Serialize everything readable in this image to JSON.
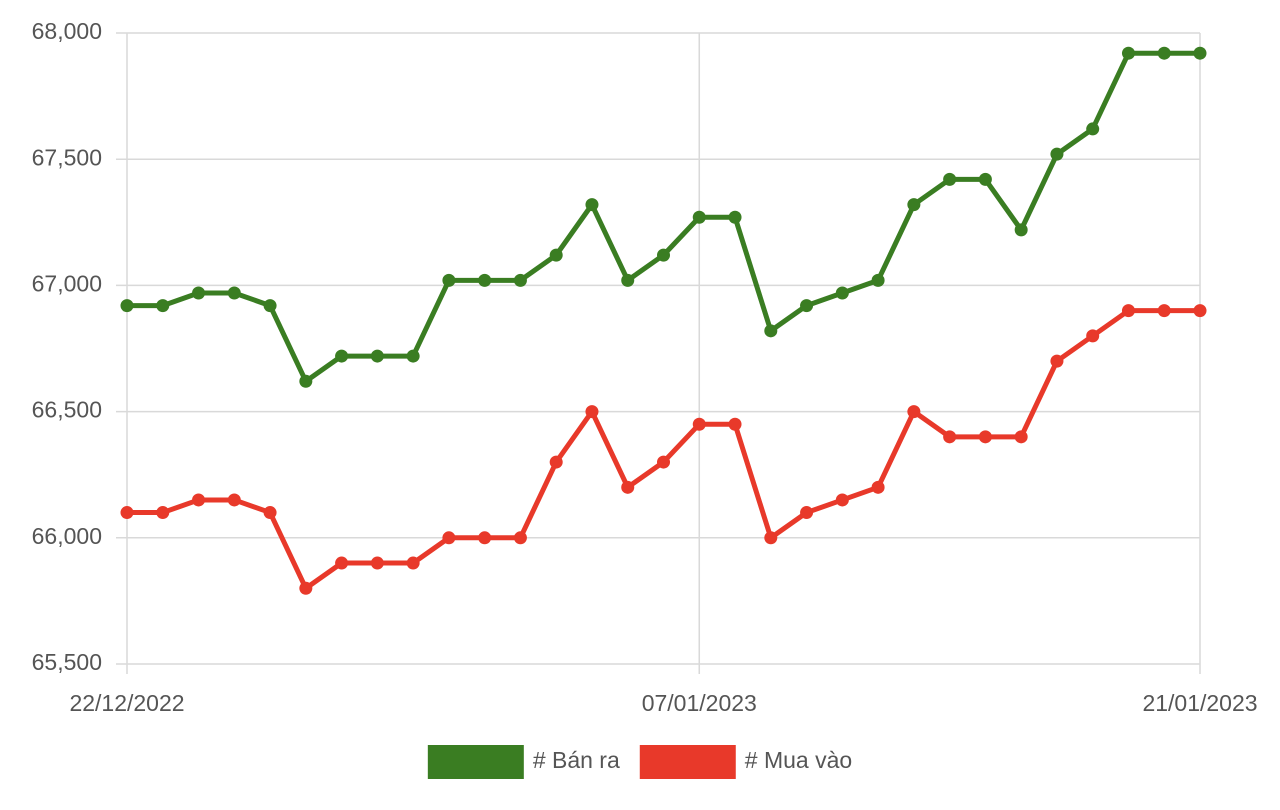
{
  "chart_data": {
    "type": "line",
    "categories": [
      "22/12/2022",
      null,
      null,
      null,
      null,
      null,
      null,
      null,
      null,
      null,
      null,
      null,
      null,
      null,
      null,
      null,
      "07/01/2023",
      null,
      null,
      null,
      null,
      null,
      null,
      null,
      null,
      null,
      null,
      null,
      null,
      null,
      "21/01/2023"
    ],
    "series": [
      {
        "name": "# Bán ra",
        "color": "#3a7d22",
        "values": [
          66920,
          66920,
          66970,
          66970,
          66920,
          66620,
          66720,
          66720,
          66720,
          67020,
          67020,
          67020,
          67120,
          67320,
          67020,
          67120,
          67270,
          67270,
          66820,
          66920,
          66970,
          67020,
          67320,
          67420,
          67420,
          67220,
          67520,
          67620,
          67920,
          67920,
          67920
        ]
      },
      {
        "name": "# Mua vào",
        "color": "#e8392a",
        "values": [
          66100,
          66100,
          66150,
          66150,
          66100,
          65800,
          65900,
          65900,
          65900,
          66000,
          66000,
          66000,
          66300,
          66500,
          66200,
          66300,
          66450,
          66450,
          66000,
          66100,
          66150,
          66200,
          66500,
          66400,
          66400,
          66400,
          66700,
          66800,
          66900,
          66900,
          66900
        ]
      }
    ],
    "ylim": [
      65500,
      68000
    ],
    "yticks": [
      {
        "value": 65500,
        "label": "65,500"
      },
      {
        "value": 66000,
        "label": "66,000"
      },
      {
        "value": 66500,
        "label": "66,500"
      },
      {
        "value": 67000,
        "label": "67,000"
      },
      {
        "value": 67500,
        "label": "67,500"
      },
      {
        "value": 68000,
        "label": "68,000"
      }
    ],
    "grid": true,
    "legend": "bottom"
  }
}
